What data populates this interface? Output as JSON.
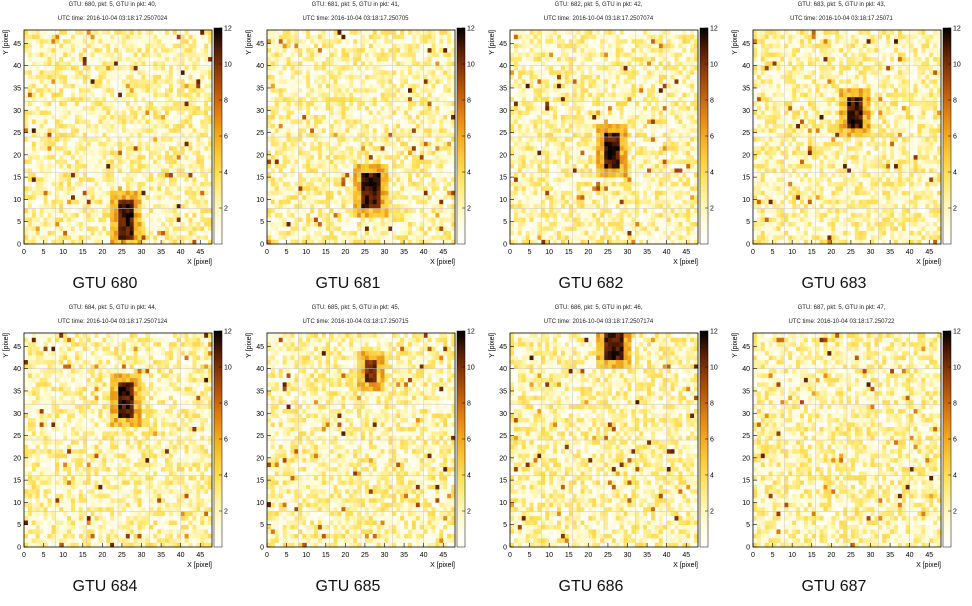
{
  "chart_data": [
    {
      "type": "heatmap",
      "title": "GTU: 680, pkt: 5, GTU in pkt: 40,",
      "subtitle": "UTC time: 2016-10-04 03:18:17.2507024",
      "caption": "GTU 680",
      "xlabel": "X [pixel]",
      "ylabel": "Y [pixel]",
      "xlim": [
        0,
        48
      ],
      "ylim": [
        0,
        48
      ],
      "x_ticks": [
        0,
        5,
        10,
        15,
        20,
        25,
        30,
        35,
        40,
        45
      ],
      "y_ticks": [
        0,
        5,
        10,
        15,
        20,
        25,
        30,
        35,
        40,
        45
      ],
      "colorbar": {
        "range": [
          0,
          12
        ],
        "ticks": [
          2,
          4,
          6,
          8,
          10,
          12
        ]
      },
      "background_level": 3,
      "grid_every": 8,
      "hotspot": {
        "x": [
          24,
          28
        ],
        "y": [
          1,
          10
        ],
        "value": 12
      }
    },
    {
      "type": "heatmap",
      "title": "GTU: 681, pkt: 5, GTU in pkt: 41,",
      "subtitle": "UTC time: 2016-10-04 03:18:17.250705",
      "caption": "GTU 681",
      "xlabel": "X [pixel]",
      "ylabel": "Y [pixel]",
      "xlim": [
        0,
        48
      ],
      "ylim": [
        0,
        48
      ],
      "x_ticks": [
        0,
        5,
        10,
        15,
        20,
        25,
        30,
        35,
        40,
        45
      ],
      "y_ticks": [
        0,
        5,
        10,
        15,
        20,
        25,
        30,
        35,
        40,
        45
      ],
      "colorbar": {
        "range": [
          0,
          12
        ],
        "ticks": [
          2,
          4,
          6,
          8,
          10,
          12
        ]
      },
      "background_level": 3,
      "grid_every": 8,
      "hotspot": {
        "x": [
          24,
          29
        ],
        "y": [
          8,
          16
        ],
        "value": 12
      }
    },
    {
      "type": "heatmap",
      "title": "GTU: 682, pkt: 5, GTU in pkt: 42,",
      "subtitle": "UTC time: 2016-10-04 03:18:17.2507074",
      "caption": "GTU 682",
      "xlabel": "X [pixel]",
      "ylabel": "Y [pixel]",
      "xlim": [
        0,
        48
      ],
      "ylim": [
        0,
        48
      ],
      "x_ticks": [
        0,
        5,
        10,
        15,
        20,
        25,
        30,
        35,
        40,
        45
      ],
      "y_ticks": [
        0,
        5,
        10,
        15,
        20,
        25,
        30,
        35,
        40,
        45
      ],
      "colorbar": {
        "range": [
          0,
          12
        ],
        "ticks": [
          2,
          4,
          6,
          8,
          10,
          12
        ]
      },
      "background_level": 3,
      "grid_every": 8,
      "hotspot": {
        "x": [
          24,
          28
        ],
        "y": [
          17,
          25
        ],
        "value": 12
      }
    },
    {
      "type": "heatmap",
      "title": "GTU: 683, pkt: 5, GTU in pkt: 43,",
      "subtitle": "UTC time: 2016-10-04 03:18:17.25071",
      "caption": "GTU 683",
      "xlabel": "X [pixel]",
      "ylabel": "Y [pixel]",
      "xlim": [
        0,
        48
      ],
      "ylim": [
        0,
        48
      ],
      "x_ticks": [
        0,
        5,
        10,
        15,
        20,
        25,
        30,
        35,
        40,
        45
      ],
      "y_ticks": [
        0,
        5,
        10,
        15,
        20,
        25,
        30,
        35,
        40,
        45
      ],
      "colorbar": {
        "range": [
          0,
          12
        ],
        "ticks": [
          2,
          4,
          6,
          8,
          10,
          12
        ]
      },
      "background_level": 3,
      "grid_every": 8,
      "hotspot": {
        "x": [
          24,
          28
        ],
        "y": [
          26,
          33
        ],
        "value": 12
      }
    },
    {
      "type": "heatmap",
      "title": "GTU: 684, pkt: 5, GTU in pkt: 44,",
      "subtitle": "UTC time: 2016-10-04 03:18:17.2507124",
      "caption": "GTU 684",
      "xlabel": "X [pixel]",
      "ylabel": "Y [pixel]",
      "xlim": [
        0,
        48
      ],
      "ylim": [
        0,
        48
      ],
      "x_ticks": [
        0,
        5,
        10,
        15,
        20,
        25,
        30,
        35,
        40,
        45
      ],
      "y_ticks": [
        0,
        5,
        10,
        15,
        20,
        25,
        30,
        35,
        40,
        45
      ],
      "colorbar": {
        "range": [
          0,
          12
        ],
        "ticks": [
          2,
          4,
          6,
          8,
          10,
          12
        ]
      },
      "background_level": 3,
      "grid_every": 8,
      "hotspot": {
        "x": [
          24,
          28
        ],
        "y": [
          29,
          37
        ],
        "value": 12
      }
    },
    {
      "type": "heatmap",
      "title": "GTU: 685, pkt: 5, GTU in pkt: 45,",
      "subtitle": "UTC time: 2016-10-04 03:18:17.250715",
      "caption": "GTU 685",
      "xlabel": "X [pixel]",
      "ylabel": "Y [pixel]",
      "xlim": [
        0,
        48
      ],
      "ylim": [
        0,
        48
      ],
      "x_ticks": [
        0,
        5,
        10,
        15,
        20,
        25,
        30,
        35,
        40,
        45
      ],
      "y_ticks": [
        0,
        5,
        10,
        15,
        20,
        25,
        30,
        35,
        40,
        45
      ],
      "colorbar": {
        "range": [
          0,
          12
        ],
        "ticks": [
          2,
          4,
          6,
          8,
          10,
          12
        ]
      },
      "background_level": 3,
      "grid_every": 8,
      "hotspot": {
        "x": [
          25,
          28
        ],
        "y": [
          37,
          42
        ],
        "value": 11
      }
    },
    {
      "type": "heatmap",
      "title": "GTU: 686, pkt: 5, GTU in pkt: 46,",
      "subtitle": "UTC time: 2016-10-04 03:18:17.2507174",
      "caption": "GTU 686",
      "xlabel": "X [pixel]",
      "ylabel": "Y [pixel]",
      "xlim": [
        0,
        48
      ],
      "ylim": [
        0,
        48
      ],
      "x_ticks": [
        0,
        5,
        10,
        15,
        20,
        25,
        30,
        35,
        40,
        45
      ],
      "y_ticks": [
        0,
        5,
        10,
        15,
        20,
        25,
        30,
        35,
        40,
        45
      ],
      "colorbar": {
        "range": [
          0,
          12
        ],
        "ticks": [
          2,
          4,
          6,
          8,
          10,
          12
        ]
      },
      "background_level": 3,
      "grid_every": 8,
      "hotspot": {
        "x": [
          24,
          29
        ],
        "y": [
          42,
          48
        ],
        "value": 12
      }
    },
    {
      "type": "heatmap",
      "title": "GTU: 687, pkt: 5, GTU in pkt: 47,",
      "subtitle": "UTC time: 2016-10-04 03:18:17.250722",
      "caption": "GTU 687",
      "xlabel": "X [pixel]",
      "ylabel": "Y [pixel]",
      "xlim": [
        0,
        48
      ],
      "ylim": [
        0,
        48
      ],
      "x_ticks": [
        0,
        5,
        10,
        15,
        20,
        25,
        30,
        35,
        40,
        45
      ],
      "y_ticks": [
        0,
        5,
        10,
        15,
        20,
        25,
        30,
        35,
        40,
        45
      ],
      "colorbar": {
        "range": [
          0,
          12
        ],
        "ticks": [
          2,
          4,
          6,
          8,
          10,
          12
        ]
      },
      "background_level": 3,
      "grid_every": 8,
      "hotspot": null
    }
  ]
}
